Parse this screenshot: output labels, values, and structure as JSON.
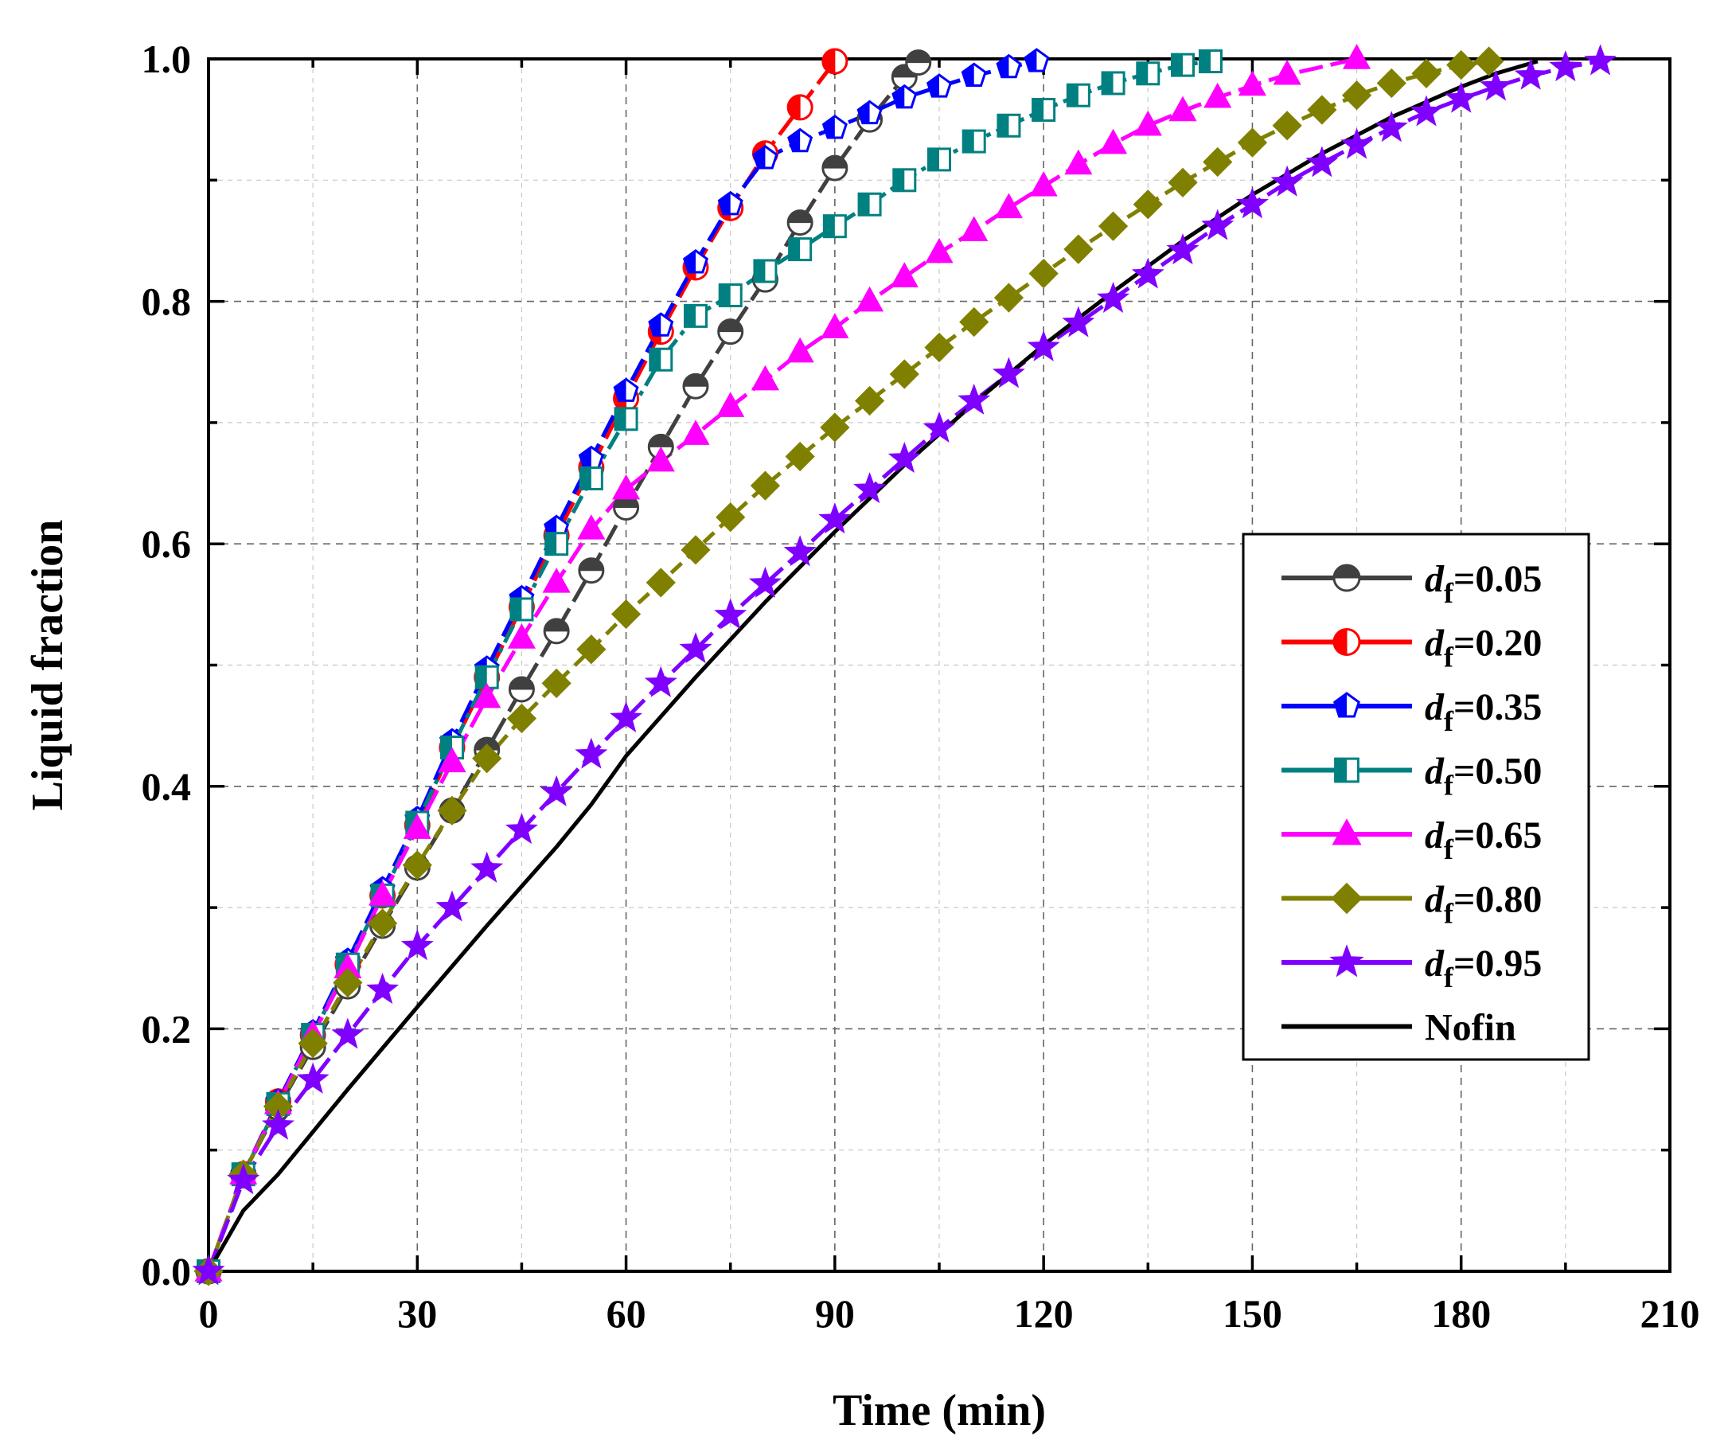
{
  "chart_data": {
    "type": "line",
    "title": "",
    "xlabel": "Time (min)",
    "ylabel": "Liquid fraction",
    "xlim": [
      0,
      210
    ],
    "ylim": [
      0,
      1.0
    ],
    "xticks": [
      "0",
      "30",
      "60",
      "90",
      "120",
      "150",
      "180",
      "210"
    ],
    "yticks": [
      "0.0",
      "0.2",
      "0.4",
      "0.6",
      "0.8",
      "1.0"
    ],
    "grid": true,
    "legend_position": "center-right",
    "series": [
      {
        "name": "df=0.05",
        "label_main": "d",
        "label_sub": "f",
        "label_tail": "=0.05",
        "color": "#404040",
        "marker": "half-circle",
        "dash": "long-dash",
        "x": [
          0,
          5,
          10,
          15,
          20,
          25,
          30,
          35,
          40,
          45,
          50,
          55,
          60,
          65,
          70,
          75,
          80,
          85,
          90,
          95,
          100,
          102
        ],
        "y": [
          0,
          0.08,
          0.135,
          0.185,
          0.235,
          0.285,
          0.333,
          0.38,
          0.43,
          0.48,
          0.528,
          0.578,
          0.63,
          0.68,
          0.73,
          0.775,
          0.818,
          0.865,
          0.91,
          0.95,
          0.985,
          0.997
        ]
      },
      {
        "name": "df=0.20",
        "label_main": "d",
        "label_sub": "f",
        "label_tail": "=0.20",
        "color": "#ff0000",
        "marker": "half-circle-left",
        "dash": "long-dash",
        "x": [
          0,
          5,
          10,
          15,
          20,
          25,
          30,
          35,
          40,
          45,
          50,
          55,
          60,
          65,
          70,
          75,
          80,
          85,
          90
        ],
        "y": [
          0,
          0.08,
          0.14,
          0.195,
          0.253,
          0.31,
          0.368,
          0.432,
          0.49,
          0.548,
          0.607,
          0.663,
          0.72,
          0.775,
          0.828,
          0.877,
          0.922,
          0.96,
          0.998
        ]
      },
      {
        "name": "df=0.35",
        "label_main": "d",
        "label_sub": "f",
        "label_tail": "=0.35",
        "color": "#0000ff",
        "marker": "pentagon",
        "dash": "long-dash",
        "x": [
          0,
          5,
          10,
          15,
          20,
          25,
          30,
          35,
          40,
          45,
          50,
          55,
          60,
          65,
          70,
          75,
          80,
          85,
          90,
          95,
          100,
          105,
          110,
          115,
          119
        ],
        "y": [
          0,
          0.08,
          0.14,
          0.197,
          0.256,
          0.315,
          0.373,
          0.437,
          0.497,
          0.555,
          0.613,
          0.67,
          0.726,
          0.78,
          0.832,
          0.88,
          0.918,
          0.932,
          0.943,
          0.955,
          0.968,
          0.977,
          0.986,
          0.993,
          0.998
        ]
      },
      {
        "name": "df=0.50",
        "label_main": "d",
        "label_sub": "f",
        "label_tail": "=0.50",
        "color": "#008080",
        "marker": "half-square",
        "dash": "dash-dot",
        "x": [
          0,
          5,
          10,
          15,
          20,
          25,
          30,
          35,
          40,
          45,
          50,
          55,
          60,
          65,
          70,
          75,
          80,
          85,
          90,
          95,
          100,
          105,
          110,
          115,
          120,
          125,
          130,
          135,
          140,
          144
        ],
        "y": [
          0,
          0.08,
          0.138,
          0.195,
          0.253,
          0.31,
          0.37,
          0.432,
          0.49,
          0.546,
          0.6,
          0.654,
          0.703,
          0.752,
          0.788,
          0.805,
          0.825,
          0.843,
          0.862,
          0.88,
          0.9,
          0.917,
          0.932,
          0.945,
          0.958,
          0.97,
          0.98,
          0.988,
          0.995,
          0.998
        ]
      },
      {
        "name": "df=0.65",
        "label_main": "d",
        "label_sub": "f",
        "label_tail": "=0.65",
        "color": "#ff00ff",
        "marker": "triangle",
        "dash": "long-dash",
        "x": [
          0,
          5,
          10,
          15,
          20,
          25,
          30,
          35,
          40,
          45,
          50,
          55,
          60,
          65,
          70,
          75,
          80,
          85,
          90,
          95,
          100,
          105,
          110,
          115,
          120,
          125,
          130,
          135,
          140,
          145,
          150,
          155,
          165
        ],
        "y": [
          0,
          0.08,
          0.138,
          0.195,
          0.25,
          0.31,
          0.365,
          0.42,
          0.473,
          0.522,
          0.568,
          0.612,
          0.645,
          0.668,
          0.69,
          0.713,
          0.735,
          0.758,
          0.778,
          0.8,
          0.82,
          0.84,
          0.858,
          0.877,
          0.895,
          0.913,
          0.93,
          0.945,
          0.957,
          0.968,
          0.978,
          0.987,
          1.0
        ]
      },
      {
        "name": "df=0.80",
        "label_main": "d",
        "label_sub": "f",
        "label_tail": "=0.80",
        "color": "#808000",
        "marker": "diamond",
        "dash": "dash",
        "x": [
          0,
          5,
          10,
          15,
          20,
          25,
          30,
          35,
          40,
          45,
          50,
          55,
          60,
          65,
          70,
          75,
          80,
          85,
          90,
          95,
          100,
          105,
          110,
          115,
          120,
          125,
          130,
          135,
          140,
          145,
          150,
          155,
          160,
          165,
          170,
          175,
          180,
          184
        ],
        "y": [
          0,
          0.08,
          0.136,
          0.188,
          0.238,
          0.287,
          0.335,
          0.38,
          0.423,
          0.456,
          0.485,
          0.513,
          0.542,
          0.568,
          0.595,
          0.622,
          0.648,
          0.672,
          0.696,
          0.718,
          0.74,
          0.762,
          0.783,
          0.803,
          0.823,
          0.843,
          0.862,
          0.88,
          0.898,
          0.915,
          0.931,
          0.945,
          0.958,
          0.97,
          0.98,
          0.988,
          0.995,
          0.998
        ]
      },
      {
        "name": "df=0.95",
        "label_main": "d",
        "label_sub": "f",
        "label_tail": "=0.95",
        "color": "#8000ff",
        "marker": "star",
        "dash": "long-dash",
        "x": [
          0,
          5,
          10,
          15,
          20,
          25,
          30,
          35,
          40,
          45,
          50,
          55,
          60,
          65,
          70,
          75,
          80,
          85,
          90,
          95,
          100,
          105,
          110,
          115,
          120,
          125,
          130,
          135,
          140,
          145,
          150,
          155,
          160,
          165,
          170,
          175,
          180,
          185,
          190,
          195,
          200
        ],
        "y": [
          0,
          0.075,
          0.12,
          0.158,
          0.195,
          0.232,
          0.268,
          0.3,
          0.332,
          0.364,
          0.395,
          0.426,
          0.456,
          0.485,
          0.513,
          0.541,
          0.567,
          0.593,
          0.62,
          0.645,
          0.67,
          0.695,
          0.718,
          0.74,
          0.762,
          0.782,
          0.802,
          0.822,
          0.842,
          0.862,
          0.88,
          0.898,
          0.914,
          0.929,
          0.943,
          0.956,
          0.967,
          0.977,
          0.986,
          0.993,
          0.998
        ]
      },
      {
        "name": "Nofin",
        "label_main": "Nofin",
        "label_sub": "",
        "label_tail": "",
        "color": "#000000",
        "marker": "none",
        "dash": "solid",
        "x": [
          0,
          5,
          10,
          20,
          30,
          40,
          50,
          55,
          60,
          70,
          80,
          90,
          100,
          110,
          120,
          130,
          140,
          150,
          160,
          170,
          180,
          185,
          191
        ],
        "y": [
          0,
          0.05,
          0.08,
          0.15,
          0.218,
          0.285,
          0.35,
          0.385,
          0.425,
          0.49,
          0.552,
          0.61,
          0.665,
          0.716,
          0.764,
          0.808,
          0.85,
          0.888,
          0.922,
          0.952,
          0.977,
          0.988,
          0.998
        ]
      }
    ]
  }
}
